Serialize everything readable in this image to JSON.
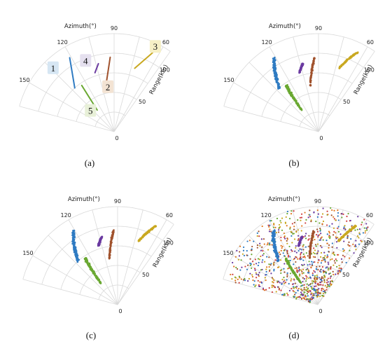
{
  "colors": {
    "target1": "#2f7bc2",
    "target2": "#a0522d",
    "target3": "#c9a820",
    "target4": "#6a3aa0",
    "target5": "#6aa832",
    "grid": "#d9d9d9",
    "clutter": [
      "#2f7bc2",
      "#c9a820",
      "#6a3aa0",
      "#6aa832",
      "#e07820",
      "#d04040",
      "#a0522d"
    ]
  },
  "chart_data": [
    {
      "panel": "(a)",
      "type": "scatter",
      "coordinate_system": "polar",
      "angular_label": "Azimuth(°)",
      "radial_label": "Range(km)",
      "angular_ticks": [
        60,
        90,
        120,
        150
      ],
      "radial_ticks": [
        0,
        50,
        100
      ],
      "angular_range": [
        55,
        165
      ],
      "radial_range": [
        0,
        125
      ],
      "target_labels": [
        "1",
        "2",
        "3",
        "4",
        "5"
      ],
      "tracks": [
        {
          "label": "1",
          "azimuth_deg": [
            132,
            121
          ],
          "range_km": [
            75,
            110
          ],
          "style": "line"
        },
        {
          "label": "2",
          "azimuth_deg": [
            100,
            93
          ],
          "range_km": [
            60,
            95
          ],
          "style": "line"
        },
        {
          "label": "3",
          "azimuth_deg": [
            72,
            64
          ],
          "range_km": [
            85,
            112
          ],
          "style": "line"
        },
        {
          "label": "4",
          "azimuth_deg": [
            108,
            103
          ],
          "range_km": [
            79,
            89
          ],
          "style": "line"
        },
        {
          "label": "5",
          "azimuth_deg": [
            128,
            125
          ],
          "range_km": [
            35,
            72
          ],
          "style": "line"
        }
      ]
    },
    {
      "panel": "(b)",
      "type": "scatter",
      "coordinate_system": "polar",
      "angular_label": "Azimuth(°)",
      "radial_label": "Range(km)",
      "angular_ticks": [
        60,
        90,
        120,
        150
      ],
      "radial_ticks": [
        0,
        50,
        100
      ],
      "tracks": [
        {
          "label": "1",
          "azimuth_deg": [
            132,
            121
          ],
          "range_km": [
            75,
            110
          ],
          "style": "points"
        },
        {
          "label": "2",
          "azimuth_deg": [
            100,
            93
          ],
          "range_km": [
            60,
            95
          ],
          "style": "points"
        },
        {
          "label": "3",
          "azimuth_deg": [
            72,
            64
          ],
          "range_km": [
            85,
            112
          ],
          "style": "points"
        },
        {
          "label": "4",
          "azimuth_deg": [
            108,
            103
          ],
          "range_km": [
            79,
            89
          ],
          "style": "points"
        },
        {
          "label": "5",
          "azimuth_deg": [
            128,
            125
          ],
          "range_km": [
            35,
            72
          ],
          "style": "points"
        }
      ]
    },
    {
      "panel": "(c)",
      "type": "scatter",
      "coordinate_system": "polar",
      "angular_label": "Azimuth(°)",
      "radial_label": "Range(km)",
      "angular_ticks": [
        60,
        90,
        120,
        150
      ],
      "radial_ticks": [
        0,
        50,
        100
      ],
      "tracks": [
        {
          "label": "1",
          "azimuth_deg": [
            132,
            121
          ],
          "range_km": [
            75,
            110
          ],
          "style": "points"
        },
        {
          "label": "2",
          "azimuth_deg": [
            100,
            93
          ],
          "range_km": [
            60,
            95
          ],
          "style": "points"
        },
        {
          "label": "3",
          "azimuth_deg": [
            72,
            64
          ],
          "range_km": [
            85,
            112
          ],
          "style": "points"
        },
        {
          "label": "4",
          "azimuth_deg": [
            108,
            103
          ],
          "range_km": [
            79,
            89
          ],
          "style": "points"
        },
        {
          "label": "5",
          "azimuth_deg": [
            128,
            125
          ],
          "range_km": [
            35,
            72
          ],
          "style": "points"
        }
      ]
    },
    {
      "panel": "(d)",
      "type": "scatter",
      "coordinate_system": "polar",
      "angular_label": "Azimuth(°)",
      "radial_label": "Range(km)",
      "angular_ticks": [
        60,
        90,
        120,
        150
      ],
      "radial_ticks": [
        0,
        50,
        100
      ],
      "clutter_points": 900,
      "tracks": [
        {
          "label": "1",
          "azimuth_deg": [
            132,
            121
          ],
          "range_km": [
            75,
            110
          ],
          "style": "points"
        },
        {
          "label": "2",
          "azimuth_deg": [
            100,
            93
          ],
          "range_km": [
            60,
            95
          ],
          "style": "points"
        },
        {
          "label": "3",
          "azimuth_deg": [
            72,
            64
          ],
          "range_km": [
            85,
            112
          ],
          "style": "points"
        },
        {
          "label": "4",
          "azimuth_deg": [
            108,
            103
          ],
          "range_km": [
            79,
            89
          ],
          "style": "points"
        },
        {
          "label": "5",
          "azimuth_deg": [
            128,
            125
          ],
          "range_km": [
            35,
            72
          ],
          "style": "points"
        }
      ]
    }
  ]
}
